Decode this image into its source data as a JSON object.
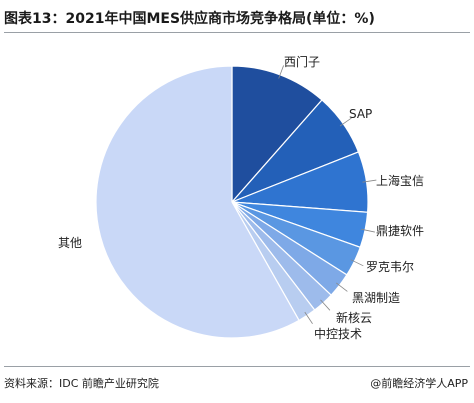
{
  "title": "图表13：2021年中国MES供应商市场竞争格局(单位：%)",
  "source": "资料来源：IDC 前瞻产业研究院",
  "brand": "@前瞻经济学人APP",
  "chart_data": {
    "type": "pie",
    "title": "图表13：2021年中国MES供应商市场竞争格局(单位：%)",
    "categories": [
      "西门子",
      "SAP",
      "上海宝信",
      "鼎捷软件",
      "罗克韦尔",
      "黑湖制造",
      "新核云",
      "中控技术",
      "其他"
    ],
    "values": [
      11.5,
      7.5,
      7.2,
      4.2,
      3.6,
      3.0,
      2.6,
      2.2,
      58.2
    ],
    "colors": [
      "#1f4e9e",
      "#2360b8",
      "#2f74d0",
      "#3f86de",
      "#5a97e2",
      "#7ea9e7",
      "#9dbbeb",
      "#b8cdf0",
      "#c9d8f7"
    ],
    "start_angle_deg": 0,
    "direction": "clockwise",
    "legend": "none",
    "labels_outside": true
  }
}
